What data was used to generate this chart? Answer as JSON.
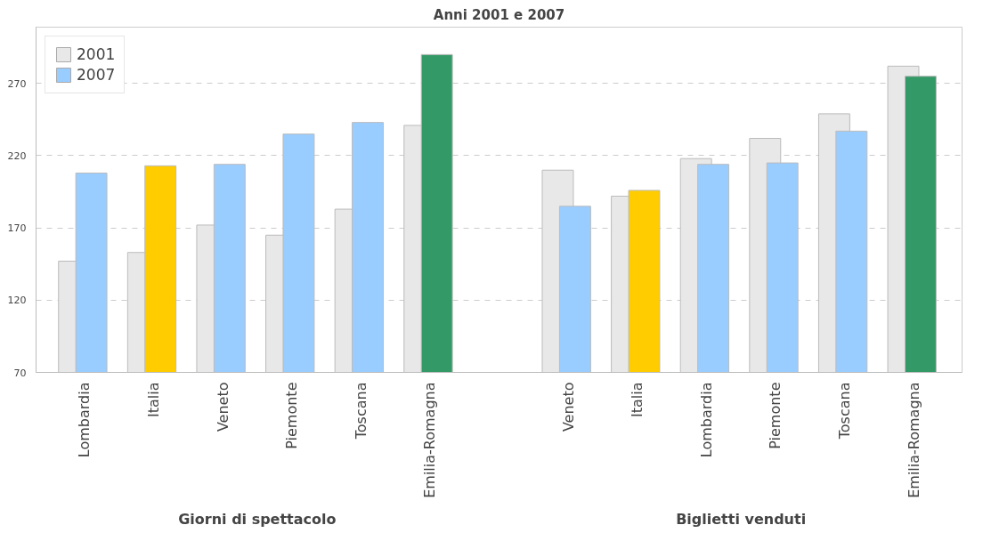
{
  "chart_data": {
    "type": "bar",
    "title": "Anni 2001 e 2007",
    "categories": [
      "Lombardia",
      "Italia",
      "Veneto",
      "Piemonte",
      "Toscana",
      "Emilia-Romagna",
      null,
      "Veneto",
      "Italia",
      "Lombardia",
      "Piemonte",
      "Toscana",
      "Emilia-Romagna"
    ],
    "series": [
      {
        "name": "2001",
        "color": "#e8e8e8",
        "values": [
          147,
          153,
          172,
          165,
          183,
          241,
          null,
          210,
          192,
          218,
          232,
          249,
          282
        ]
      },
      {
        "name": "2007",
        "color": "#99ccff",
        "colors": [
          "#99ccff",
          "#ffcc00",
          "#99ccff",
          "#99ccff",
          "#99ccff",
          "#339966",
          "#99ccff",
          "#99ccff",
          "#ffcc00",
          "#99ccff",
          "#99ccff",
          "#99ccff",
          "#339966"
        ],
        "values": [
          208,
          213,
          214,
          235,
          243,
          290,
          null,
          185,
          196,
          214,
          215,
          237,
          275
        ]
      }
    ],
    "annotations": [
      "Giorni di spettacolo",
      "Biglietti venduti"
    ],
    "ylim": [
      70,
      309
    ],
    "yticks": [
      70,
      120,
      170,
      220,
      270
    ],
    "grid": "y",
    "legend": "top left"
  }
}
